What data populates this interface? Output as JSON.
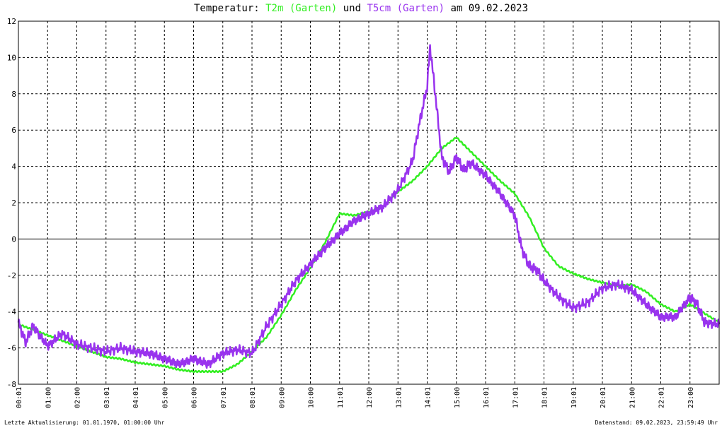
{
  "title": {
    "prefix": "Temperatur: ",
    "series1": "T2m (Garten)",
    "connector": " und ",
    "series2": "T5cm (Garten)",
    "suffix": " am 09.02.2023"
  },
  "footer": {
    "left": "Letzte Aktualisierung: 01.01.1970, 01:00:00 Uhr",
    "right": "Datenstand: 09.02.2023, 23:59:49 Uhr"
  },
  "colors": {
    "T2m": "#33ee22",
    "T5cm": "#9933ee",
    "grid": "#000000",
    "zero_line": "#000000"
  },
  "chart_data": {
    "type": "line",
    "title": "Temperatur: T2m (Garten) und T5cm (Garten) am 09.02.2023",
    "xlabel": "",
    "ylabel": "",
    "xlim": [
      0,
      24
    ],
    "ylim": [
      -8,
      12
    ],
    "x_ticks": [
      "00:01",
      "01:00",
      "02:00",
      "03:01",
      "04:01",
      "05:00",
      "06:00",
      "07:01",
      "08:01",
      "09:00",
      "10:00",
      "11:01",
      "12:00",
      "13:01",
      "14:01",
      "15:00",
      "16:01",
      "17:01",
      "18:01",
      "19:01",
      "20:01",
      "21:00",
      "22:01",
      "23:00"
    ],
    "y_ticks": [
      "12",
      "10",
      "8",
      "6",
      "4",
      "2",
      "0",
      "-2",
      "-4",
      "-6",
      "-8"
    ],
    "grid": true,
    "series": [
      {
        "name": "T2m (Garten)",
        "x": [
          0,
          0.5,
          1,
          1.5,
          2,
          2.5,
          3,
          3.5,
          4,
          4.5,
          5,
          5.5,
          6,
          6.5,
          7,
          7.5,
          8,
          8.5,
          9,
          9.5,
          10,
          10.5,
          11,
          11.5,
          12,
          12.5,
          13,
          13.5,
          14,
          14.5,
          15,
          15.5,
          16,
          16.5,
          17,
          17.5,
          18,
          18.5,
          19,
          19.5,
          20,
          20.5,
          21,
          21.5,
          22,
          22.5,
          23,
          23.5,
          24
        ],
        "values": [
          -4.7,
          -5.0,
          -5.3,
          -5.6,
          -5.9,
          -6.2,
          -6.5,
          -6.6,
          -6.8,
          -6.9,
          -7.0,
          -7.2,
          -7.3,
          -7.3,
          -7.3,
          -6.9,
          -6.2,
          -5.4,
          -4.2,
          -2.8,
          -1.6,
          -0.2,
          1.4,
          1.3,
          1.5,
          1.8,
          2.6,
          3.2,
          4.0,
          5.0,
          5.6,
          4.8,
          4.0,
          3.2,
          2.5,
          1.2,
          -0.5,
          -1.5,
          -1.9,
          -2.2,
          -2.4,
          -2.6,
          -2.5,
          -2.9,
          -3.6,
          -4.0,
          -3.6,
          -4.1,
          -4.6
        ]
      },
      {
        "name": "T5cm (Garten)",
        "x": [
          0,
          0.25,
          0.5,
          1,
          1.5,
          2,
          2.5,
          3,
          3.5,
          4,
          4.5,
          5,
          5.5,
          6,
          6.5,
          7,
          7.5,
          8,
          8.5,
          9,
          9.5,
          10,
          10.5,
          11,
          11.5,
          12,
          12.5,
          13,
          13.5,
          13.75,
          14,
          14.1,
          14.25,
          14.5,
          14.75,
          15,
          15.25,
          15.5,
          16,
          16.5,
          17,
          17.25,
          17.5,
          17.75,
          18,
          18.5,
          19,
          19.5,
          20,
          20.5,
          21,
          21.5,
          22,
          22.5,
          23,
          23.25,
          23.5,
          24
        ],
        "values": [
          -4.6,
          -5.7,
          -4.8,
          -5.9,
          -5.2,
          -5.8,
          -6.0,
          -6.2,
          -6.0,
          -6.2,
          -6.3,
          -6.6,
          -6.9,
          -6.6,
          -6.9,
          -6.3,
          -6.1,
          -6.3,
          -4.8,
          -3.6,
          -2.3,
          -1.4,
          -0.5,
          0.3,
          1.0,
          1.4,
          1.8,
          2.7,
          4.3,
          6.5,
          8.4,
          10.6,
          8.4,
          4.5,
          3.7,
          4.5,
          3.8,
          4.2,
          3.5,
          2.5,
          1.3,
          -0.6,
          -1.5,
          -1.7,
          -2.3,
          -3.2,
          -3.8,
          -3.5,
          -2.7,
          -2.5,
          -2.8,
          -3.6,
          -4.3,
          -4.3,
          -3.2,
          -3.6,
          -4.6,
          -4.7
        ]
      }
    ]
  }
}
